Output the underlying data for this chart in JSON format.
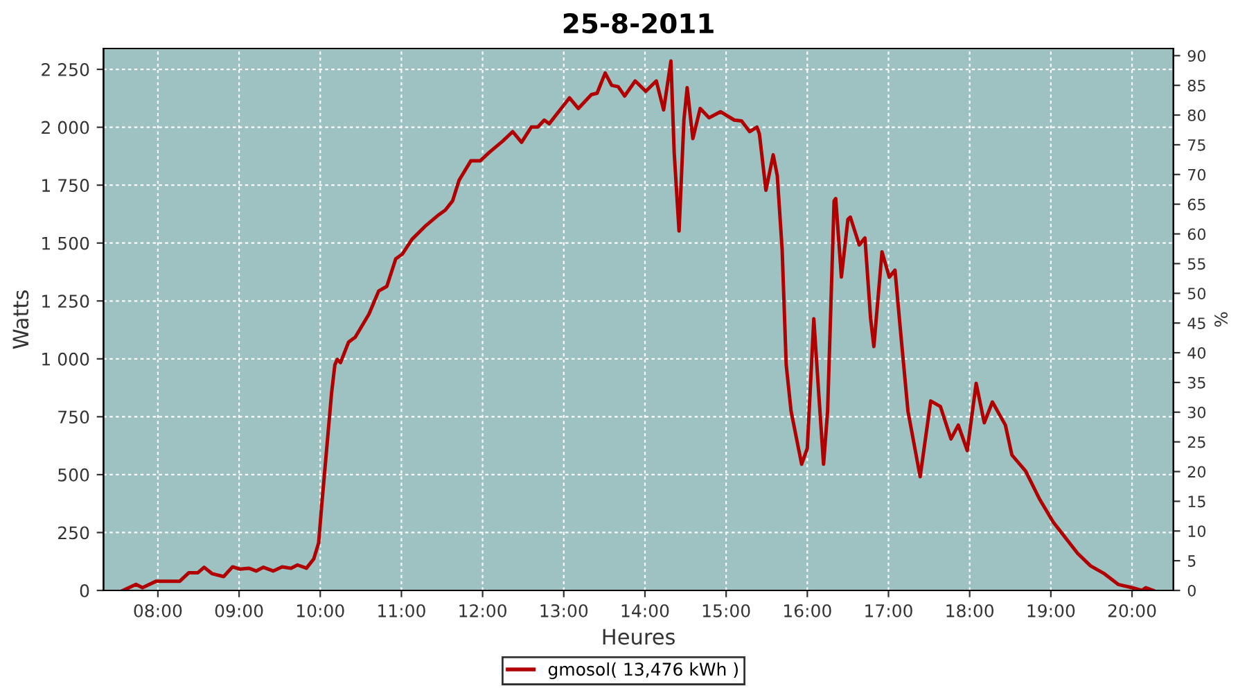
{
  "chart_data": {
    "type": "line",
    "title": "25-8-2011",
    "xlabel": "Heures",
    "ylabel": "Watts",
    "y2label": "%",
    "xlim": [
      7.33,
      20.51
    ],
    "ylim": [
      0,
      2340
    ],
    "y2lim": [
      0,
      91.2
    ],
    "xticks": [
      {
        "value": 8,
        "label": "08:00"
      },
      {
        "value": 9,
        "label": "09:00"
      },
      {
        "value": 10,
        "label": "10:00"
      },
      {
        "value": 11,
        "label": "11:00"
      },
      {
        "value": 12,
        "label": "12:00"
      },
      {
        "value": 13,
        "label": "13:00"
      },
      {
        "value": 14,
        "label": "14:00"
      },
      {
        "value": 15,
        "label": "15:00"
      },
      {
        "value": 16,
        "label": "16:00"
      },
      {
        "value": 17,
        "label": "17:00"
      },
      {
        "value": 18,
        "label": "18:00"
      },
      {
        "value": 19,
        "label": "19:00"
      },
      {
        "value": 20,
        "label": "20:00"
      }
    ],
    "yticks": [
      0,
      250,
      500,
      750,
      {
        "value": 1000,
        "label": "1 000"
      },
      {
        "value": 1250,
        "label": "1 250"
      },
      {
        "value": 1500,
        "label": "1 500"
      },
      {
        "value": 1750,
        "label": "1 750"
      },
      {
        "value": 2000,
        "label": "2 000"
      },
      {
        "value": 2250,
        "label": "2 250"
      }
    ],
    "y2ticks": [
      0,
      5,
      10,
      15,
      20,
      25,
      30,
      35,
      40,
      45,
      50,
      55,
      60,
      65,
      70,
      75,
      80,
      85,
      90
    ],
    "grid": true,
    "legend": "bottom",
    "marker": "none",
    "line_style": "solid",
    "series": [
      {
        "name": "gmosol( 13,476 kWh )",
        "color": "#b00000",
        "x": [
          7.57,
          7.73,
          7.81,
          7.98,
          8.27,
          8.38,
          8.49,
          8.57,
          8.67,
          8.81,
          8.92,
          9.01,
          9.12,
          9.21,
          9.3,
          9.42,
          9.53,
          9.64,
          9.72,
          9.83,
          9.92,
          9.98,
          10.02,
          10.08,
          10.14,
          10.18,
          10.21,
          10.25,
          10.35,
          10.43,
          10.6,
          10.72,
          10.82,
          10.93,
          11.01,
          11.13,
          11.29,
          11.46,
          11.54,
          11.63,
          11.71,
          11.855,
          11.97,
          12.08,
          12.25,
          12.37,
          12.48,
          12.6,
          12.68,
          12.76,
          12.82,
          12.99,
          13.07,
          13.18,
          13.34,
          13.41,
          13.51,
          13.59,
          13.67,
          13.75,
          13.88,
          14.01,
          14.14,
          14.23,
          14.32,
          14.36,
          14.42,
          14.48,
          14.52,
          14.59,
          14.68,
          14.79,
          14.93,
          15.1,
          15.19,
          15.29,
          15.38,
          15.41,
          15.49,
          15.58,
          15.63,
          15.69,
          15.74,
          15.8,
          15.93,
          16.0,
          16.08,
          16.14,
          16.2,
          16.25,
          16.33,
          16.35,
          16.42,
          16.5,
          16.53,
          16.64,
          16.71,
          16.78,
          16.82,
          16.92,
          17.01,
          17.08,
          17.15,
          17.24,
          17.39,
          17.52,
          17.64,
          17.77,
          17.86,
          17.97,
          18.08,
          18.18,
          18.28,
          18.44,
          18.52,
          18.69,
          18.86,
          19.03,
          19.23,
          19.33,
          19.49,
          19.66,
          19.83,
          20.0,
          20.12,
          20.17,
          20.26
        ],
        "values": [
          0,
          26,
          12,
          40,
          40,
          76,
          76,
          100,
          72,
          60,
          102,
          92,
          96,
          84,
          100,
          84,
          102,
          96,
          110,
          96,
          136,
          205,
          375,
          614,
          854,
          974,
          998,
          984,
          1073,
          1093,
          1193,
          1293,
          1313,
          1432,
          1452,
          1516,
          1572,
          1622,
          1642,
          1682,
          1771,
          1855,
          1855,
          1891,
          1941,
          1981,
          1935,
          2001,
          2001,
          2031,
          2015,
          2091,
          2127,
          2081,
          2141,
          2147,
          2234,
          2181,
          2175,
          2135,
          2200,
          2155,
          2200,
          2075,
          2286,
          1891,
          1552,
          2031,
          2171,
          1951,
          2081,
          2041,
          2067,
          2031,
          2027,
          1981,
          2001,
          1971,
          1728,
          1881,
          1791,
          1472,
          974,
          774,
          545,
          614,
          1173,
          854,
          545,
          774,
          1682,
          1692,
          1353,
          1602,
          1612,
          1492,
          1522,
          1173,
          1053,
          1462,
          1353,
          1383,
          1113,
          774,
          491,
          818,
          794,
          654,
          714,
          604,
          894,
          724,
          814,
          714,
          585,
          515,
          395,
          295,
          205,
          160,
          106,
          72,
          26,
          12,
          0,
          12,
          0
        ]
      }
    ]
  }
}
